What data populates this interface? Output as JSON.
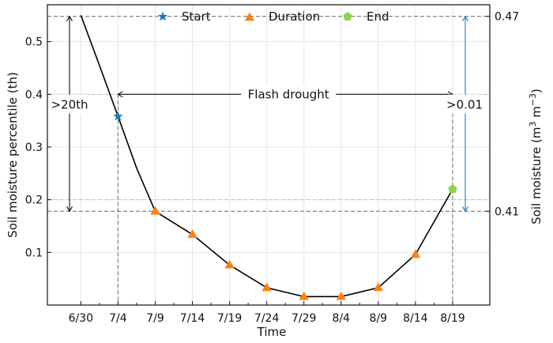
{
  "chart_data": {
    "type": "line",
    "xlabel": "Time",
    "ylabel": "Soil moisture percentile (th)",
    "y2label": "Soil moisture (m  3  m  −3)",
    "y2label_parts": [
      "Soil moisture (m",
      "3",
      "m",
      "−3",
      ")"
    ],
    "categories": [
      "6/30",
      "7/4",
      "7/9",
      "7/14",
      "7/19",
      "7/24",
      "7/29",
      "8/4",
      "8/9",
      "8/14",
      "8/19"
    ],
    "xlim": [
      -0.9,
      11.0
    ],
    "ylim": [
      0.0,
      0.57
    ],
    "yticks": [
      "0.1",
      "0.2",
      "0.3",
      "0.4",
      "0.5"
    ],
    "y2ticks": [
      "0.47",
      "0.41"
    ],
    "grid": true,
    "legend_position": "top-center",
    "series": [
      {
        "name": "",
        "x": [
          0,
          0.5,
          1,
          1.5,
          2,
          3,
          4,
          5,
          6,
          7,
          8,
          9,
          10
        ],
        "y": [
          0.55,
          0.455,
          0.358,
          0.26,
          0.178,
          0.134,
          0.076,
          0.033,
          0.016,
          0.016,
          0.033,
          0.096,
          0.22
        ],
        "color": "#000000"
      }
    ],
    "markers": [
      {
        "name": "Start",
        "symbol": "star",
        "color": "#1f77b4",
        "points": [
          {
            "x": 1,
            "y": 0.358
          }
        ]
      },
      {
        "name": "Duration",
        "symbol": "triangle",
        "color": "#ff7f0e",
        "points": [
          {
            "x": 2,
            "y": 0.178
          },
          {
            "x": 3,
            "y": 0.134
          },
          {
            "x": 4,
            "y": 0.076
          },
          {
            "x": 5,
            "y": 0.033
          },
          {
            "x": 6,
            "y": 0.016
          },
          {
            "x": 7,
            "y": 0.016
          },
          {
            "x": 8,
            "y": 0.033
          },
          {
            "x": 9,
            "y": 0.096
          }
        ]
      },
      {
        "name": "End",
        "symbol": "pentagon",
        "color": "#8fd14f",
        "points": [
          {
            "x": 10,
            "y": 0.22
          }
        ]
      }
    ],
    "reference_lines": {
      "dashed_dark": [
        0.548,
        0.178
      ],
      "dashed_light": [
        0.4,
        0.2
      ],
      "vertical_dashed_x": [
        1,
        10
      ]
    },
    "annotations": [
      {
        "text": ">20th",
        "color": "#111111"
      },
      {
        "text": "Flash drought",
        "color": "#111111"
      },
      {
        "text": ">0.01",
        "color": "#1f77b4"
      }
    ]
  }
}
